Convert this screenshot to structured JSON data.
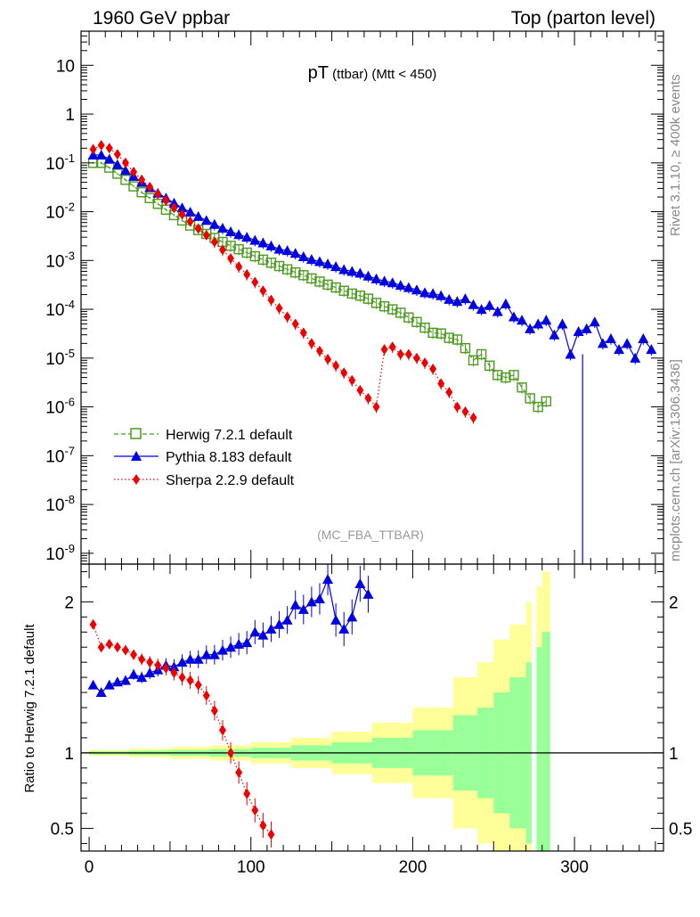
{
  "header": {
    "left": "1960 GeV ppbar",
    "right": "Top (parton level)"
  },
  "side": {
    "rivet": "Rivet 3.1.10, ≥ 400k events",
    "mcplots": "mcplots.cern.ch [arXiv:1306.3436]"
  },
  "chart_data": [
    {
      "type": "line",
      "title_main": "pT",
      "title_sub": " (ttbar) (Mtt < 450)",
      "analysis": "(MC_FBA_TTBAR)",
      "yscale": "log",
      "ylim": [
        6e-10,
        50
      ],
      "xlim": [
        -5,
        355
      ],
      "ytick_labels": [
        "10",
        "1",
        "10-1",
        "10-2",
        "10-3",
        "10-4",
        "10-5",
        "10-6",
        "10-7",
        "10-8",
        "10-9"
      ],
      "legend": [
        {
          "label": "Herwig 7.2.1 default",
          "color": "#4b9a1e",
          "marker": "open-square",
          "line": "dashed"
        },
        {
          "label": "Pythia 8.183 default",
          "color": "#0000e0",
          "marker": "filled-triangle",
          "line": "solid"
        },
        {
          "label": "Sherpa 2.2.9 default",
          "color": "#ee0000",
          "marker": "filled-diamond",
          "line": "dotted"
        }
      ],
      "series": [
        {
          "name": "Herwig 7.2.1 default",
          "color": "#4b9a1e",
          "x": [
            2.5,
            7.5,
            12.5,
            17.5,
            22.5,
            27.5,
            32.5,
            37.5,
            42.5,
            47.5,
            52.5,
            57.5,
            62.5,
            67.5,
            72.5,
            77.5,
            82.5,
            87.5,
            92.5,
            97.5,
            102.5,
            107.5,
            112.5,
            117.5,
            122.5,
            127.5,
            132.5,
            137.5,
            142.5,
            147.5,
            152.5,
            157.5,
            162.5,
            167.5,
            172.5,
            177.5,
            182.5,
            187.5,
            192.5,
            197.5,
            202.5,
            207.5,
            212.5,
            217.5,
            222.5,
            227.5,
            232.5,
            237.5,
            242.5,
            247.5,
            252.5,
            257.5,
            262.5,
            267.5,
            272.5,
            277.5,
            282.5
          ],
          "y": [
            0.1,
            0.1,
            0.08,
            0.06,
            0.045,
            0.033,
            0.025,
            0.019,
            0.0145,
            0.011,
            0.0085,
            0.0066,
            0.0052,
            0.0042,
            0.0035,
            0.0029,
            0.0024,
            0.002,
            0.0017,
            0.00145,
            0.00122,
            0.00104,
            0.0009,
            0.00077,
            0.00066,
            0.00057,
            0.0005,
            0.00043,
            0.00037,
            0.00032,
            0.00028,
            0.00024,
            0.00021,
            0.00019,
            0.000165,
            0.000135,
            0.000115,
            0.0001,
            8.5e-05,
            6.8e-05,
            5.5e-05,
            4.2e-05,
            3.3e-05,
            3.2e-05,
            2.6e-05,
            2.4e-05,
            1.6e-05,
            9e-06,
            1.2e-05,
            7e-06,
            4.5e-06,
            4e-06,
            4.5e-06,
            2.5e-06,
            1.5e-06,
            1e-06,
            1.3e-06
          ]
        },
        {
          "name": "Pythia 8.183 default",
          "color": "#0000e0",
          "x": [
            2.5,
            7.5,
            12.5,
            17.5,
            22.5,
            27.5,
            32.5,
            37.5,
            42.5,
            47.5,
            52.5,
            57.5,
            62.5,
            67.5,
            72.5,
            77.5,
            82.5,
            87.5,
            92.5,
            97.5,
            102.5,
            107.5,
            112.5,
            117.5,
            122.5,
            127.5,
            132.5,
            137.5,
            142.5,
            147.5,
            152.5,
            157.5,
            162.5,
            167.5,
            172.5,
            177.5,
            182.5,
            187.5,
            192.5,
            197.5,
            202.5,
            207.5,
            212.5,
            217.5,
            222.5,
            227.5,
            232.5,
            237.5,
            242.5,
            247.5,
            252.5,
            257.5,
            262.5,
            267.5,
            272.5,
            277.5,
            282.5,
            287.5,
            292.5,
            297.5,
            302.5,
            307.5,
            312.5,
            317.5,
            322.5,
            327.5,
            332.5,
            337.5,
            342.5,
            347.5
          ],
          "y": [
            0.145,
            0.145,
            0.12,
            0.092,
            0.07,
            0.053,
            0.04,
            0.031,
            0.024,
            0.019,
            0.015,
            0.012,
            0.0098,
            0.008,
            0.0066,
            0.0055,
            0.0046,
            0.0039,
            0.0034,
            0.003,
            0.0026,
            0.0023,
            0.002,
            0.0017,
            0.0016,
            0.0014,
            0.0012,
            0.00105,
            0.00095,
            0.00085,
            0.00075,
            0.00065,
            0.0006,
            0.00055,
            0.00048,
            0.00042,
            0.00038,
            0.00035,
            0.00031,
            0.00028,
            0.00025,
            0.00022,
            0.00021,
            0.00019,
            0.00016,
            0.000145,
            0.000165,
            0.000125,
            0.0001,
            0.00012,
            9e-05,
            0.00013,
            7e-05,
            6e-05,
            4e-05,
            5e-05,
            6e-05,
            3e-05,
            5e-05,
            1.2e-05,
            3.5e-05,
            4e-05,
            5.5e-05,
            2e-05,
            2.5e-05,
            1.5e-05,
            2e-05,
            1e-05,
            2.5e-05,
            1.5e-05
          ]
        },
        {
          "name": "Sherpa 2.2.9 default",
          "color": "#ee0000",
          "x": [
            2.5,
            7.5,
            12.5,
            17.5,
            22.5,
            27.5,
            32.5,
            37.5,
            42.5,
            47.5,
            52.5,
            57.5,
            62.5,
            67.5,
            72.5,
            77.5,
            82.5,
            87.5,
            92.5,
            97.5,
            102.5,
            107.5,
            112.5,
            117.5,
            122.5,
            127.5,
            132.5,
            137.5,
            142.5,
            147.5,
            152.5,
            157.5,
            162.5,
            167.5,
            172.5,
            177.5,
            182.5,
            187.5,
            192.5,
            197.5,
            202.5,
            207.5,
            212.5,
            217.5,
            222.5,
            227.5,
            232.5,
            237.5
          ],
          "y": [
            0.19,
            0.23,
            0.2,
            0.15,
            0.1,
            0.065,
            0.045,
            0.032,
            0.023,
            0.017,
            0.012,
            0.0088,
            0.0063,
            0.0045,
            0.0033,
            0.0024,
            0.00165,
            0.0011,
            0.00075,
            0.00052,
            0.00036,
            0.00024,
            0.000155,
            0.000105,
            7e-05,
            5e-05,
            3.3e-05,
            2e-05,
            1.4e-05,
            9.5e-06,
            7e-06,
            5e-06,
            3.5e-06,
            2.2e-06,
            1.5e-06,
            1e-06,
            1.5e-05,
            1.7e-05,
            1.2e-05,
            1.2e-05,
            1e-05,
            8e-06,
            6e-06,
            3e-06,
            2e-06,
            1e-06,
            8e-07,
            6e-07
          ]
        }
      ]
    },
    {
      "type": "line",
      "ylabel": "Ratio to Herwig 7.2.1 default",
      "ylim": [
        0.35,
        2.25
      ],
      "xlim": [
        -5,
        355
      ],
      "yticks": [
        0.5,
        1,
        2
      ],
      "ytick_labels": [
        "0.5",
        "1",
        "2",
        "0.5",
        "1",
        "2"
      ],
      "xticks": [
        0,
        100,
        200,
        300
      ],
      "xtick_labels": [
        "0",
        "100",
        "200",
        "300"
      ],
      "band_inner_color": "#99ff99",
      "band_outer_color": "#ffff99",
      "bands": {
        "x": [
          0,
          25,
          50,
          75,
          100,
          125,
          150,
          175,
          200,
          225,
          240,
          250,
          260,
          270,
          275,
          280,
          285
        ],
        "inner": [
          0.01,
          0.015,
          0.02,
          0.025,
          0.035,
          0.05,
          0.07,
          0.1,
          0.15,
          0.25,
          0.3,
          0.4,
          0.5,
          0.6,
          0.7,
          0.8,
          0.8
        ],
        "outer": [
          0.02,
          0.03,
          0.04,
          0.05,
          0.07,
          0.1,
          0.14,
          0.2,
          0.3,
          0.5,
          0.6,
          0.75,
          0.85,
          1.0,
          1.1,
          1.2,
          1.2
        ]
      },
      "series": [
        {
          "name": "Pythia 8.183 default",
          "color": "#0000e0",
          "x": [
            2.5,
            7.5,
            12.5,
            17.5,
            22.5,
            27.5,
            32.5,
            37.5,
            42.5,
            47.5,
            52.5,
            57.5,
            62.5,
            67.5,
            72.5,
            77.5,
            82.5,
            87.5,
            92.5,
            97.5,
            102.5,
            107.5,
            112.5,
            117.5,
            122.5,
            127.5,
            132.5,
            137.5,
            142.5,
            147.5,
            152.5,
            157.5,
            162.5,
            167.5,
            172.5
          ],
          "y": [
            1.45,
            1.4,
            1.45,
            1.47,
            1.48,
            1.52,
            1.5,
            1.53,
            1.55,
            1.58,
            1.57,
            1.6,
            1.62,
            1.62,
            1.65,
            1.65,
            1.68,
            1.7,
            1.72,
            1.73,
            1.8,
            1.78,
            1.82,
            1.85,
            1.88,
            1.98,
            1.95,
            2.0,
            2.02,
            2.15,
            1.88,
            1.82,
            1.9,
            2.12,
            2.05
          ]
        },
        {
          "name": "Sherpa 2.2.9 default",
          "color": "#ee0000",
          "x": [
            2.5,
            7.5,
            12.5,
            17.5,
            22.5,
            27.5,
            32.5,
            37.5,
            42.5,
            47.5,
            52.5,
            57.5,
            62.5,
            67.5,
            72.5,
            77.5,
            82.5,
            87.5,
            92.5,
            97.5,
            102.5,
            107.5,
            112.5
          ],
          "y": [
            1.85,
            1.7,
            1.72,
            1.7,
            1.68,
            1.65,
            1.62,
            1.6,
            1.58,
            1.56,
            1.53,
            1.5,
            1.48,
            1.45,
            1.38,
            1.28,
            1.15,
            1.0,
            0.87,
            0.73,
            0.62,
            0.52,
            0.46
          ]
        }
      ]
    }
  ]
}
